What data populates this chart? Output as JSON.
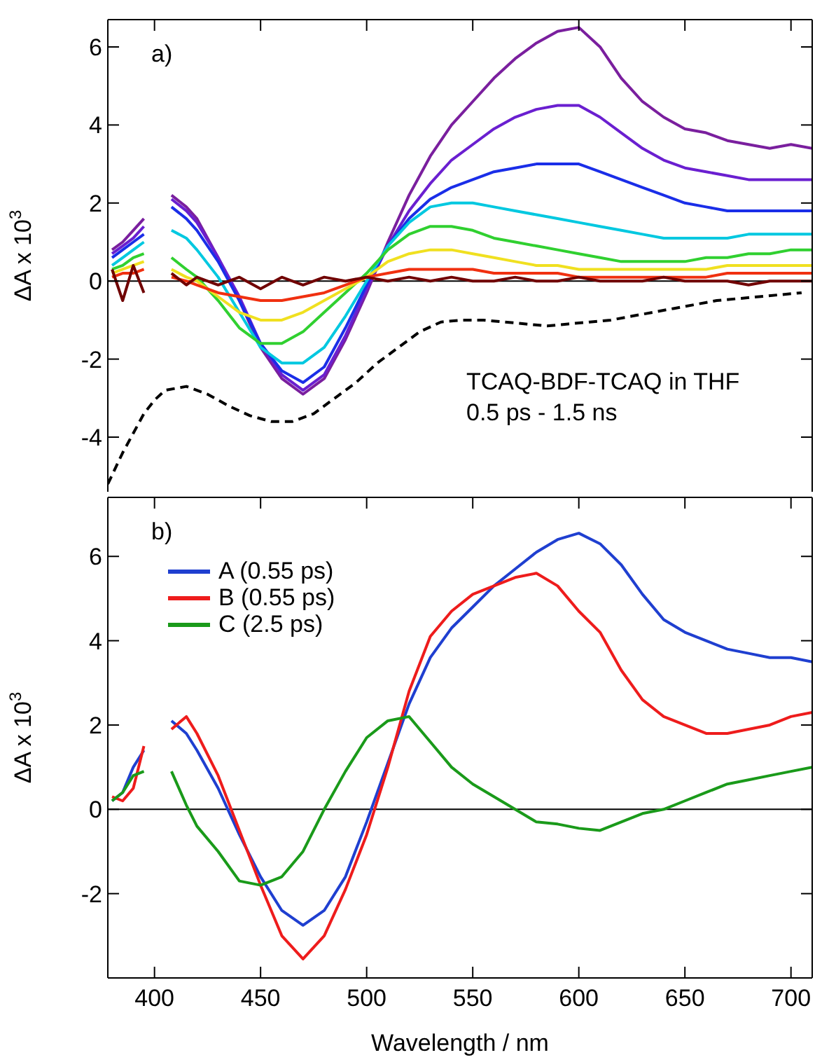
{
  "chart_data": [
    {
      "type": "line",
      "ylabel": "ΔA x 10$^{3}$",
      "annotations": [
        "a)",
        "TCAQ-BDF-TCAQ in THF",
        "0.5 ps - 1.5 ns"
      ],
      "xlim": [
        378,
        710
      ],
      "xticks": [
        400,
        450,
        500,
        550,
        600,
        650,
        700
      ],
      "ylim": [
        -5.4,
        6.7
      ],
      "yticks": [
        -4,
        -2,
        0,
        2,
        4,
        6
      ],
      "tick_labels": "y",
      "grid": false,
      "legend": false,
      "marker": "none",
      "line_style": "solid",
      "ref_lines": [
        {
          "axis": "y",
          "value": 0,
          "color": "#000000"
        }
      ],
      "x": [
        380,
        385,
        390,
        395,
        400,
        408,
        415,
        420,
        430,
        440,
        450,
        460,
        470,
        480,
        490,
        500,
        510,
        520,
        530,
        540,
        550,
        560,
        570,
        580,
        590,
        600,
        610,
        620,
        630,
        640,
        650,
        660,
        670,
        680,
        690,
        700,
        710
      ],
      "series": [
        {
          "color": "#7a1f9e",
          "values": [
            0.8,
            1.0,
            1.3,
            1.6,
            null,
            2.2,
            1.9,
            1.6,
            0.6,
            -0.5,
            -1.7,
            -2.5,
            -2.9,
            -2.5,
            -1.5,
            -0.3,
            1.0,
            2.2,
            3.2,
            4.0,
            4.6,
            5.2,
            5.7,
            6.1,
            6.4,
            6.5,
            6.0,
            5.2,
            4.6,
            4.2,
            3.9,
            3.8,
            3.6,
            3.5,
            3.4,
            3.5,
            3.4
          ]
        },
        {
          "color": "#6a1fd0",
          "values": [
            0.7,
            0.9,
            1.1,
            1.4,
            null,
            2.1,
            1.8,
            1.5,
            0.6,
            -0.4,
            -1.6,
            -2.4,
            -2.8,
            -2.4,
            -1.4,
            -0.2,
            0.9,
            1.8,
            2.5,
            3.1,
            3.5,
            3.9,
            4.2,
            4.4,
            4.5,
            4.5,
            4.2,
            3.8,
            3.4,
            3.1,
            2.9,
            2.8,
            2.7,
            2.6,
            2.6,
            2.6,
            2.6
          ]
        },
        {
          "color": "#1a2ee8",
          "values": [
            0.6,
            0.8,
            1.0,
            1.2,
            null,
            1.9,
            1.6,
            1.3,
            0.5,
            -0.5,
            -1.6,
            -2.3,
            -2.6,
            -2.2,
            -1.2,
            -0.1,
            0.9,
            1.6,
            2.1,
            2.4,
            2.6,
            2.8,
            2.9,
            3.0,
            3.0,
            3.0,
            2.8,
            2.6,
            2.4,
            2.2,
            2.0,
            1.9,
            1.8,
            1.8,
            1.8,
            1.8,
            1.8
          ]
        },
        {
          "color": "#00c8e0",
          "values": [
            0.4,
            0.6,
            0.8,
            1.0,
            null,
            1.3,
            1.1,
            0.8,
            0.1,
            -0.8,
            -1.7,
            -2.1,
            -2.1,
            -1.7,
            -0.9,
            0.0,
            0.9,
            1.5,
            1.9,
            2.0,
            2.0,
            1.9,
            1.8,
            1.7,
            1.6,
            1.5,
            1.4,
            1.3,
            1.2,
            1.1,
            1.1,
            1.1,
            1.1,
            1.2,
            1.2,
            1.2,
            1.2
          ]
        },
        {
          "color": "#30d030",
          "values": [
            0.3,
            0.4,
            0.6,
            0.7,
            null,
            0.6,
            0.3,
            0.1,
            -0.5,
            -1.2,
            -1.6,
            -1.6,
            -1.3,
            -0.8,
            -0.3,
            0.2,
            0.8,
            1.2,
            1.4,
            1.4,
            1.3,
            1.1,
            1.0,
            0.9,
            0.8,
            0.7,
            0.6,
            0.5,
            0.5,
            0.5,
            0.5,
            0.6,
            0.6,
            0.7,
            0.7,
            0.8,
            0.8
          ]
        },
        {
          "color": "#f0e020",
          "values": [
            0.2,
            0.3,
            0.4,
            0.5,
            null,
            0.3,
            0.1,
            0.0,
            -0.4,
            -0.8,
            -1.0,
            -1.0,
            -0.8,
            -0.5,
            -0.2,
            0.1,
            0.5,
            0.7,
            0.8,
            0.8,
            0.7,
            0.6,
            0.5,
            0.4,
            0.4,
            0.3,
            0.3,
            0.3,
            0.3,
            0.3,
            0.3,
            0.3,
            0.4,
            0.4,
            0.4,
            0.4,
            0.4
          ]
        },
        {
          "color": "#f03010",
          "values": [
            0.1,
            0.2,
            0.2,
            0.3,
            null,
            0.1,
            0.0,
            -0.1,
            -0.3,
            -0.4,
            -0.5,
            -0.5,
            -0.4,
            -0.3,
            -0.1,
            0.1,
            0.2,
            0.3,
            0.3,
            0.3,
            0.3,
            0.2,
            0.2,
            0.2,
            0.2,
            0.1,
            0.1,
            0.1,
            0.1,
            0.1,
            0.1,
            0.1,
            0.2,
            0.2,
            0.2,
            0.2,
            0.2
          ]
        },
        {
          "color": "#700000",
          "values": [
            0.3,
            -0.5,
            0.4,
            -0.3,
            null,
            0.2,
            -0.1,
            0.1,
            -0.1,
            0.1,
            -0.2,
            0.1,
            -0.1,
            0.1,
            0.0,
            0.1,
            0.0,
            0.1,
            0.0,
            0.1,
            0.0,
            0.0,
            0.1,
            0.0,
            0.0,
            0.1,
            0.0,
            0.0,
            0.0,
            0.1,
            0.0,
            0.0,
            0.0,
            -0.1,
            0.0,
            0.0,
            0.0
          ]
        },
        {
          "color": "#000000",
          "line_style": "dashed",
          "x": [
            378,
            385,
            390,
            395,
            400,
            405,
            415,
            425,
            435,
            445,
            455,
            465,
            475,
            485,
            495,
            505,
            515,
            525,
            535,
            545,
            555,
            565,
            575,
            585,
            595,
            605,
            615,
            625,
            635,
            645,
            655,
            665,
            675,
            685,
            695,
            705
          ],
          "values": [
            -5.2,
            -4.4,
            -3.9,
            -3.4,
            -3.05,
            -2.8,
            -2.7,
            -2.9,
            -3.2,
            -3.45,
            -3.6,
            -3.6,
            -3.4,
            -3.0,
            -2.6,
            -2.1,
            -1.7,
            -1.3,
            -1.05,
            -1.0,
            -1.0,
            -1.05,
            -1.1,
            -1.15,
            -1.1,
            -1.05,
            -1.0,
            -0.9,
            -0.8,
            -0.7,
            -0.6,
            -0.5,
            -0.45,
            -0.4,
            -0.35,
            -0.3
          ]
        }
      ]
    },
    {
      "type": "line",
      "xlabel": "Wavelength / nm",
      "ylabel": "ΔA x 10$^{3}$",
      "annotations": [
        "b)"
      ],
      "xlim": [
        378,
        710
      ],
      "xticks": [
        400,
        450,
        500,
        550,
        600,
        650,
        700
      ],
      "ylim": [
        -4,
        7.4
      ],
      "yticks": [
        -2,
        0,
        2,
        4,
        6
      ],
      "grid": false,
      "legend": "top left",
      "marker": "none",
      "line_style": "solid",
      "ref_lines": [
        {
          "axis": "y",
          "value": 0,
          "color": "#000000"
        }
      ],
      "x": [
        380,
        385,
        390,
        395,
        400,
        408,
        415,
        420,
        430,
        440,
        450,
        460,
        470,
        480,
        490,
        500,
        510,
        520,
        530,
        540,
        550,
        560,
        570,
        580,
        590,
        600,
        610,
        620,
        630,
        640,
        650,
        660,
        670,
        680,
        690,
        700,
        710
      ],
      "series": [
        {
          "name": "A (0.55 ps)",
          "color": "#1f3fd0",
          "values": [
            0.2,
            0.4,
            1.0,
            1.4,
            null,
            2.1,
            1.8,
            1.4,
            0.5,
            -0.6,
            -1.6,
            -2.4,
            -2.75,
            -2.4,
            -1.6,
            -0.3,
            1.1,
            2.5,
            3.6,
            4.3,
            4.8,
            5.3,
            5.7,
            6.1,
            6.4,
            6.55,
            6.3,
            5.8,
            5.1,
            4.5,
            4.2,
            4.0,
            3.8,
            3.7,
            3.6,
            3.6,
            3.5
          ]
        },
        {
          "name": "B (0.55 ps)",
          "color": "#ee1c1c",
          "values": [
            0.3,
            0.2,
            0.5,
            1.5,
            null,
            1.9,
            2.2,
            1.8,
            0.8,
            -0.5,
            -1.8,
            -3.0,
            -3.55,
            -3.0,
            -1.9,
            -0.6,
            1.0,
            2.8,
            4.1,
            4.7,
            5.1,
            5.3,
            5.5,
            5.6,
            5.3,
            4.7,
            4.2,
            3.3,
            2.6,
            2.2,
            2.0,
            1.8,
            1.8,
            1.9,
            2.0,
            2.2,
            2.3
          ]
        },
        {
          "name": "C (2.5 ps)",
          "color": "#1a9a1a",
          "values": [
            0.2,
            0.4,
            0.8,
            0.9,
            null,
            0.9,
            0.1,
            -0.4,
            -1.0,
            -1.7,
            -1.8,
            -1.6,
            -1.0,
            0.0,
            0.9,
            1.7,
            2.1,
            2.2,
            1.6,
            1.0,
            0.6,
            0.3,
            0.0,
            -0.3,
            -0.35,
            -0.45,
            -0.5,
            -0.3,
            -0.1,
            0.0,
            0.2,
            0.4,
            0.6,
            0.7,
            0.8,
            0.9,
            1.0
          ]
        }
      ]
    }
  ]
}
